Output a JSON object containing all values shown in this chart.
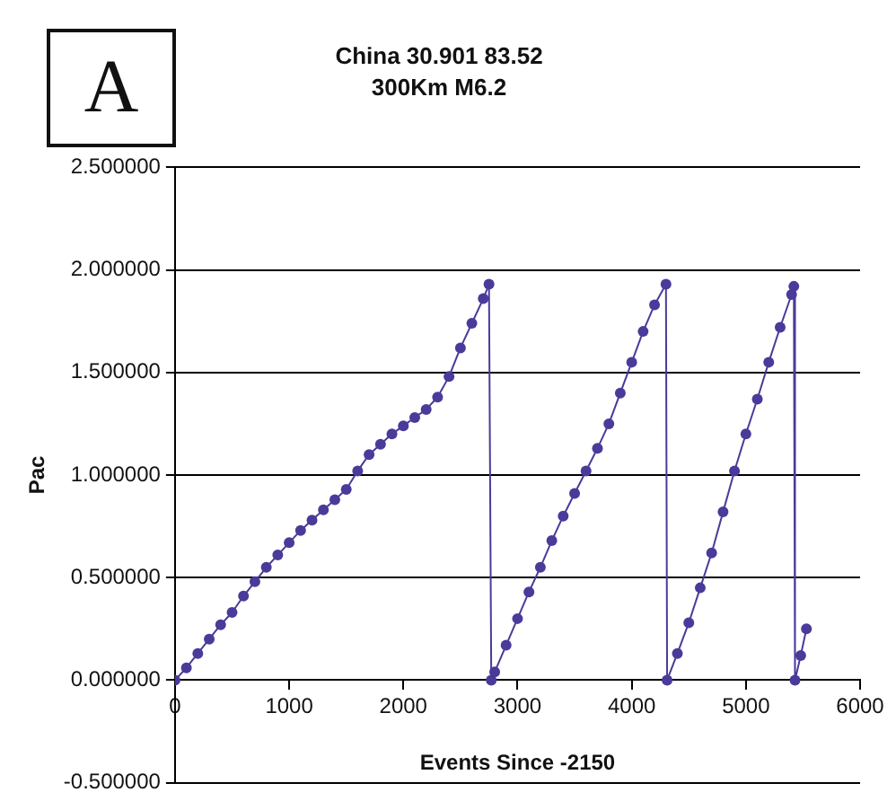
{
  "chart_data": {
    "type": "line",
    "title": "China 30.901 83.52",
    "subtitle": "300Km M6.2",
    "xlabel": "Events Since -2150",
    "ylabel": "Pac",
    "annotations": [
      "A"
    ],
    "xlim": [
      0,
      6000
    ],
    "xticks": [
      0,
      1000,
      2000,
      3000,
      4000,
      5000,
      6000
    ],
    "ylim": [
      -0.5,
      2.5
    ],
    "yticks": [
      {
        "value": -0.5,
        "label": "-0.500000"
      },
      {
        "value": 0,
        "label": "0.000000"
      },
      {
        "value": 0.5,
        "label": "0.500000"
      },
      {
        "value": 1,
        "label": "1.000000"
      },
      {
        "value": 1.5,
        "label": "1.500000"
      },
      {
        "value": 2,
        "label": "2.000000"
      },
      {
        "value": 2.5,
        "label": "2.500000"
      }
    ],
    "grid": "y",
    "legend": false,
    "marker": "circle",
    "line_style": "solid",
    "series": [
      {
        "color": "#4b3a9a",
        "x": [
          0,
          100,
          200,
          300,
          400,
          500,
          600,
          700,
          800,
          900,
          1000,
          1100,
          1200,
          1300,
          1400,
          1500,
          1600,
          1700,
          1800,
          1900,
          2000,
          2100,
          2200,
          2300,
          2400,
          2500,
          2600,
          2700,
          2750,
          2770,
          2800,
          2900,
          3000,
          3100,
          3200,
          3300,
          3400,
          3500,
          3600,
          3700,
          3800,
          3900,
          4000,
          4100,
          4200,
          4300,
          4310,
          4400,
          4500,
          4600,
          4700,
          4800,
          4900,
          5000,
          5100,
          5200,
          5300,
          5400,
          5420,
          5430,
          5480,
          5530
        ],
        "values": [
          0,
          0.06,
          0.13,
          0.2,
          0.27,
          0.33,
          0.41,
          0.48,
          0.55,
          0.61,
          0.67,
          0.73,
          0.78,
          0.83,
          0.88,
          0.93,
          1.02,
          1.1,
          1.15,
          1.2,
          1.24,
          1.28,
          1.32,
          1.38,
          1.48,
          1.62,
          1.74,
          1.86,
          1.93,
          0,
          0.04,
          0.17,
          0.3,
          0.43,
          0.55,
          0.68,
          0.8,
          0.91,
          1.02,
          1.13,
          1.25,
          1.4,
          1.55,
          1.7,
          1.83,
          1.93,
          0,
          0.13,
          0.28,
          0.45,
          0.62,
          0.82,
          1.02,
          1.2,
          1.37,
          1.55,
          1.72,
          1.88,
          1.92,
          0,
          0.12,
          0.25
        ]
      }
    ]
  }
}
